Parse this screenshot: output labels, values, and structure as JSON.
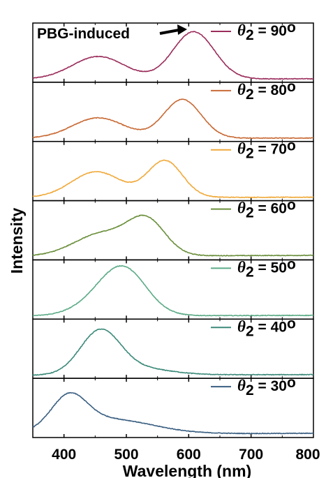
{
  "chart_data": {
    "type": "line",
    "xlabel": "Wavelength (nm)",
    "ylabel": "Intensity",
    "xlim": [
      350,
      800
    ],
    "x_ticks": [
      400,
      500,
      600,
      700,
      800
    ],
    "x_tick_labels": [
      "400",
      "500",
      "600",
      "700",
      "800"
    ],
    "annotation": "PBG-induced",
    "legend_placement": "top-right of each panel",
    "series": [
      {
        "name": "θ2 = 90°",
        "theta": "θ",
        "sub": "2",
        "value_text": " = 90",
        "degree": "o",
        "color": "#9b2d5c",
        "baseline": 0.02,
        "floor_right": 0.005,
        "peaks": [
          {
            "center": 455,
            "width": 42,
            "height": 0.42
          },
          {
            "center": 608,
            "width": 33,
            "height": 0.88
          }
        ]
      },
      {
        "name": "θ2 = 80°",
        "theta": "θ",
        "sub": "2",
        "value_text": " = 80",
        "degree": "o",
        "color": "#c86a35",
        "baseline": 0.02,
        "floor_right": 0.005,
        "peaks": [
          {
            "center": 455,
            "width": 42,
            "height": 0.38
          },
          {
            "center": 590,
            "width": 30,
            "height": 0.72
          }
        ]
      },
      {
        "name": "θ2 = 70°",
        "theta": "θ",
        "sub": "2",
        "value_text": " = 70",
        "degree": "o",
        "color": "#f0a93a",
        "baseline": 0.02,
        "floor_right": 0.005,
        "peaks": [
          {
            "center": 452,
            "width": 40,
            "height": 0.48
          },
          {
            "center": 562,
            "width": 28,
            "height": 0.68
          }
        ]
      },
      {
        "name": "θ2 = 60°",
        "theta": "θ",
        "sub": "2",
        "value_text": " = 60",
        "degree": "o",
        "color": "#6a8f3b",
        "baseline": 0.03,
        "floor_right": 0.015,
        "peaks": [
          {
            "center": 462,
            "width": 45,
            "height": 0.42
          },
          {
            "center": 533,
            "width": 30,
            "height": 0.62
          }
        ]
      },
      {
        "name": "θ2 = 50°",
        "theta": "θ",
        "sub": "2",
        "value_text": " = 50",
        "degree": "o",
        "color": "#5bab86",
        "baseline": 0.02,
        "floor_right": 0.01,
        "peaks": [
          {
            "center": 460,
            "width": 40,
            "height": 0.25
          },
          {
            "center": 498,
            "width": 36,
            "height": 0.76
          }
        ]
      },
      {
        "name": "θ2 = 40°",
        "theta": "θ",
        "sub": "2",
        "value_text": " = 40",
        "degree": "o",
        "color": "#3c8a7a",
        "baseline": 0.02,
        "floor_right": 0.01,
        "peaks": [
          {
            "center": 458,
            "width": 32,
            "height": 0.8
          },
          {
            "center": 520,
            "width": 50,
            "height": 0.12
          }
        ]
      },
      {
        "name": "θ2 = 30°",
        "theta": "θ",
        "sub": "2",
        "value_text": " = 30",
        "degree": "o",
        "color": "#3a5f82",
        "baseline": 0.02,
        "floor_right": 0.02,
        "peaks": [
          {
            "center": 408,
            "width": 28,
            "height": 0.58
          },
          {
            "center": 470,
            "width": 70,
            "height": 0.28
          }
        ]
      }
    ]
  }
}
